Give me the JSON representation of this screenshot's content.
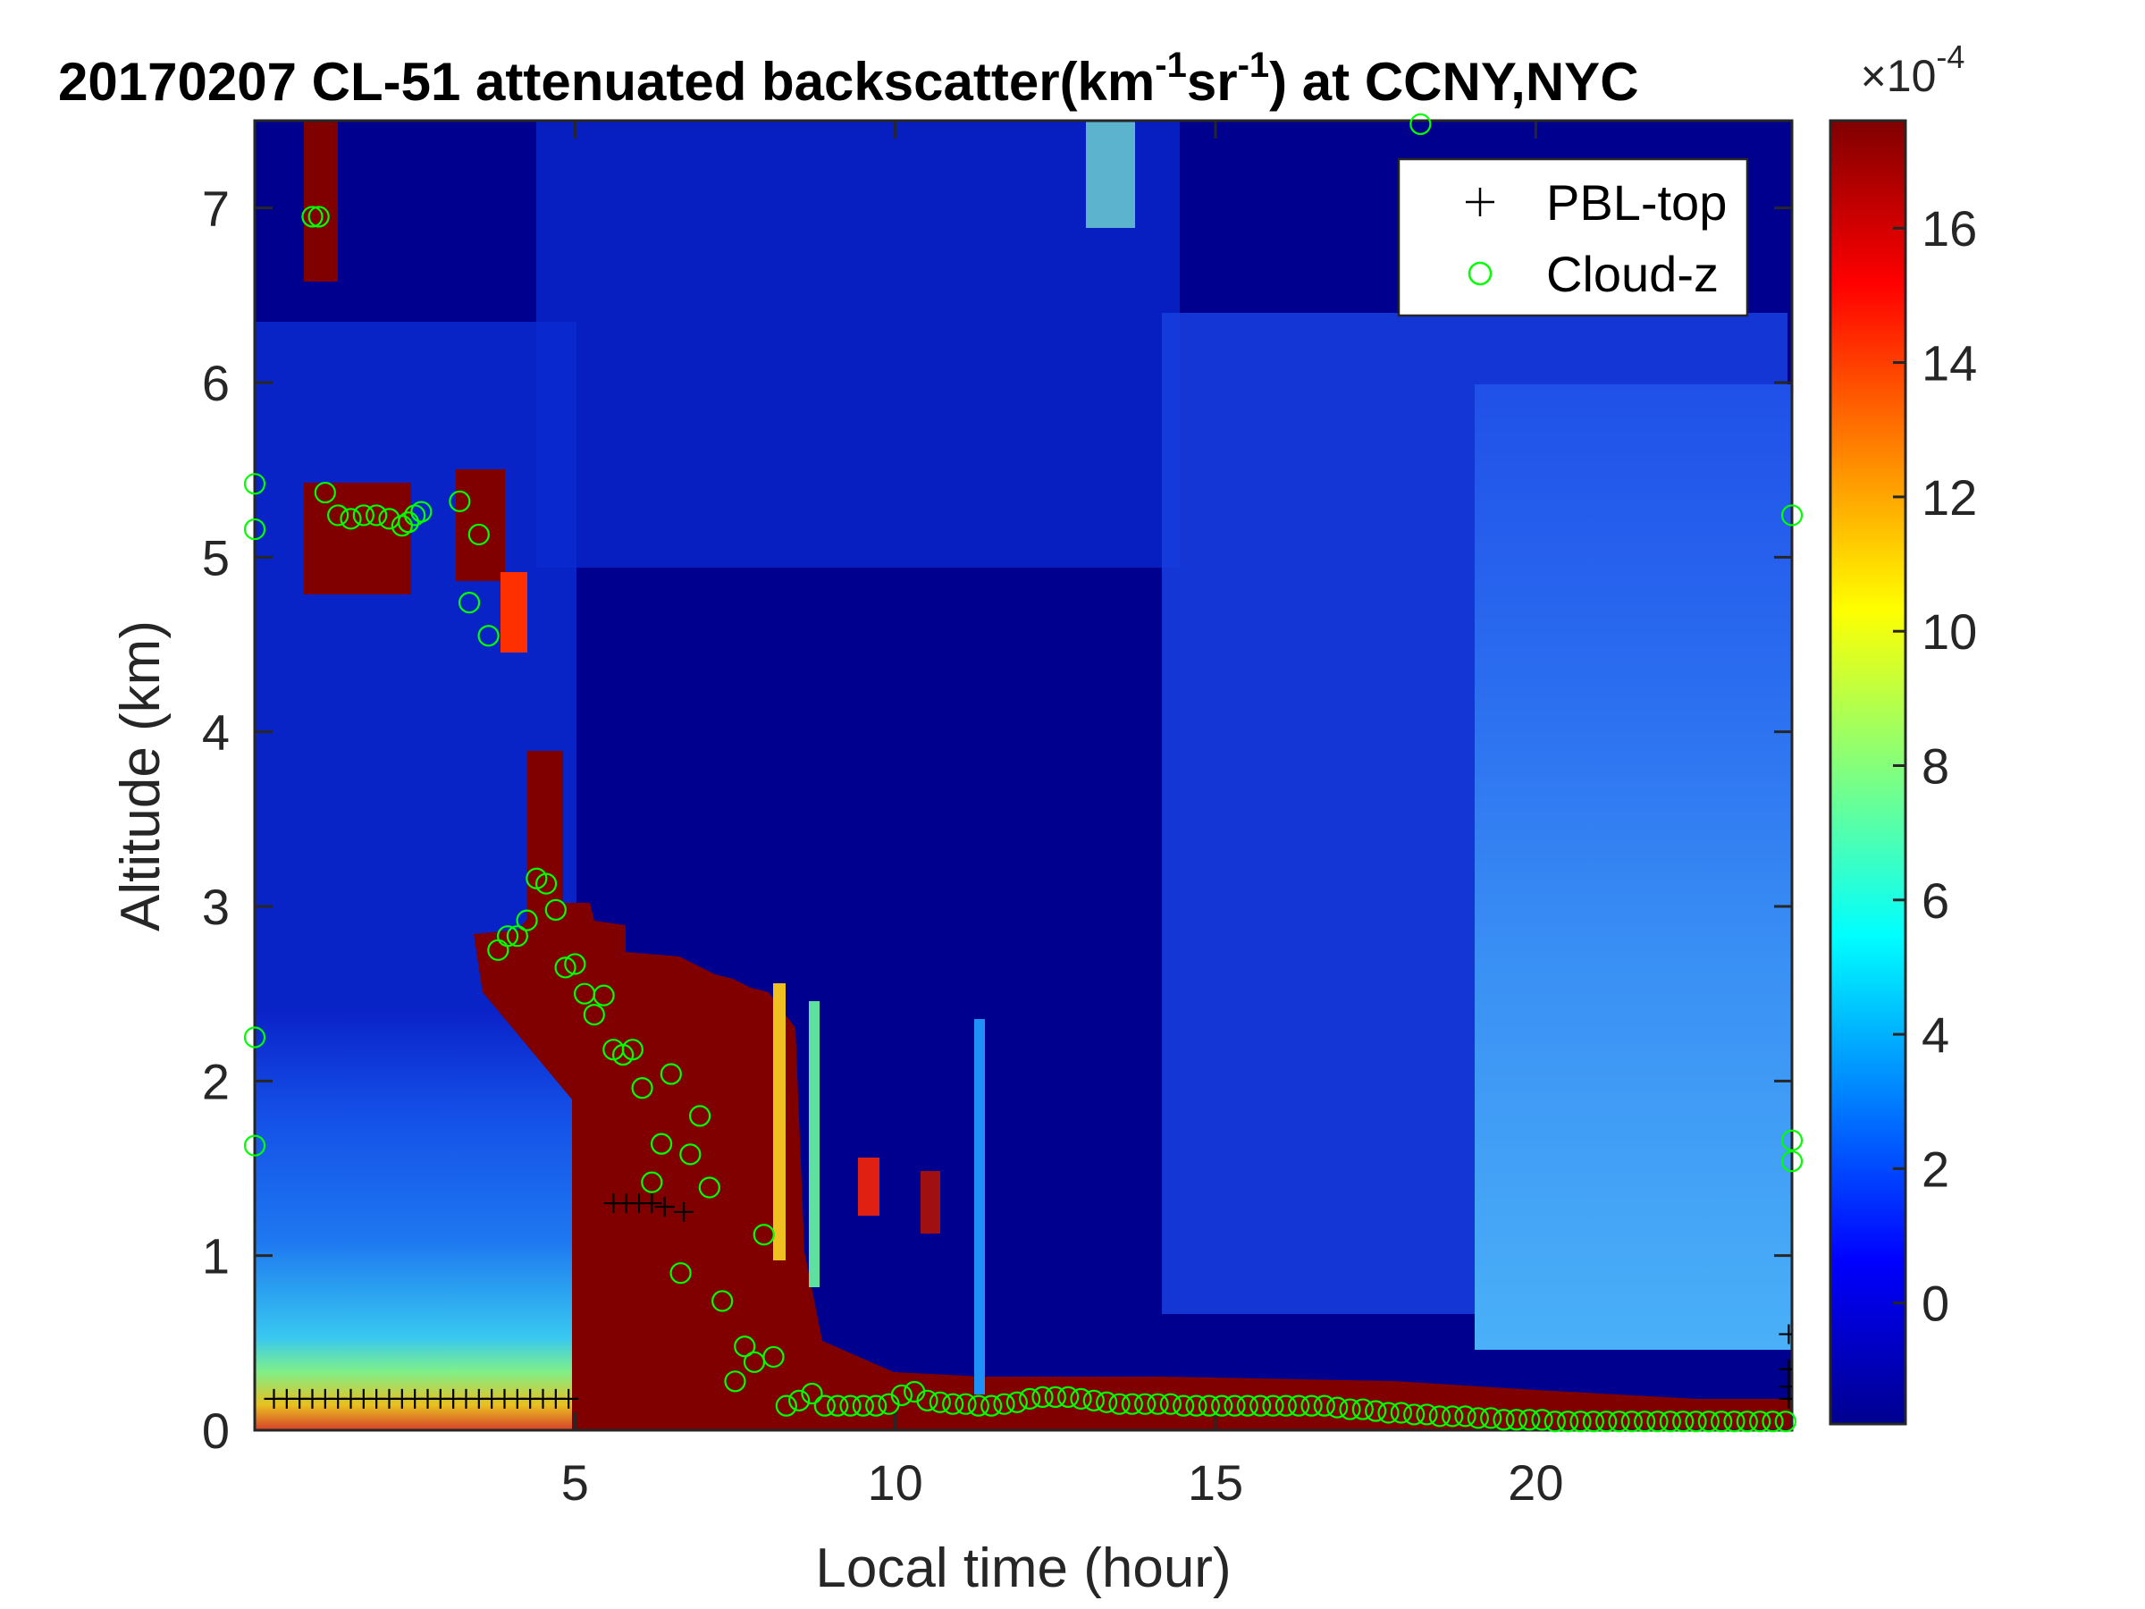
{
  "chart_data": {
    "type": "heatmap",
    "title": {
      "prefix": "20170207  CL-51 attenuated backscatter(km",
      "sup1": "-1",
      "mid": "sr",
      "sup2": "-1",
      "suffix": ") at CCNY,NYC"
    },
    "xlabel": "Local time (hour)",
    "ylabel": "Altitude (km)",
    "xlim": [
      0,
      24
    ],
    "ylim": [
      0,
      7.5
    ],
    "xticks": [
      5,
      10,
      15,
      20
    ],
    "yticks": [
      0,
      1,
      2,
      3,
      4,
      5,
      6,
      7
    ],
    "colorbar": {
      "colormap": "jet",
      "range": [
        -1.8,
        17.6
      ],
      "ticks": [
        0,
        2,
        4,
        6,
        8,
        10,
        12,
        14,
        16
      ],
      "exponent_base": "×10",
      "exponent": "-4"
    },
    "legend": {
      "placement": "top-right",
      "entries": [
        {
          "label": "PBL-top",
          "marker": "plus",
          "color": "#000000"
        },
        {
          "label": "Cloud-z",
          "marker": "circle",
          "color": "#00ff00"
        }
      ]
    },
    "series": [
      {
        "name": "PBL-top",
        "x": [
          0.3,
          0.5,
          0.7,
          0.9,
          1.1,
          1.3,
          1.5,
          1.7,
          1.9,
          2.1,
          2.3,
          2.5,
          2.7,
          2.9,
          3.1,
          3.3,
          3.5,
          3.7,
          3.9,
          4.1,
          4.3,
          4.5,
          4.7,
          4.9,
          5.6,
          5.8,
          6.0,
          6.2,
          6.4,
          6.7,
          23.95,
          23.95,
          23.95,
          23.95
        ],
        "y": [
          0.18,
          0.18,
          0.18,
          0.18,
          0.18,
          0.18,
          0.18,
          0.18,
          0.18,
          0.18,
          0.18,
          0.18,
          0.18,
          0.18,
          0.18,
          0.18,
          0.18,
          0.18,
          0.18,
          0.18,
          0.18,
          0.18,
          0.18,
          0.18,
          1.3,
          1.3,
          1.3,
          1.3,
          1.28,
          1.25,
          0.55,
          0.35,
          0.25,
          0.18
        ]
      },
      {
        "name": "Cloud-z",
        "x": [
          0.0,
          0.0,
          0.0,
          0.0,
          0.9,
          1.0,
          1.1,
          1.3,
          1.5,
          1.7,
          1.9,
          2.1,
          2.3,
          2.4,
          2.5,
          2.6,
          3.2,
          3.35,
          3.5,
          3.65,
          3.8,
          3.95,
          4.1,
          4.25,
          4.4,
          4.55,
          4.7,
          4.85,
          5.0,
          5.15,
          5.3,
          5.45,
          5.6,
          5.75,
          5.9,
          6.05,
          6.2,
          6.35,
          6.5,
          6.65,
          6.8,
          6.95,
          7.1,
          7.3,
          7.5,
          7.65,
          7.8,
          7.95,
          8.1,
          8.3,
          8.5,
          8.7,
          8.9,
          9.1,
          9.3,
          9.5,
          9.7,
          9.9,
          10.1,
          10.3,
          10.5,
          10.7,
          10.9,
          11.1,
          11.3,
          11.5,
          11.7,
          11.9,
          12.1,
          12.3,
          12.5,
          12.7,
          12.9,
          13.1,
          13.3,
          13.5,
          13.7,
          13.9,
          14.1,
          14.3,
          14.5,
          14.7,
          14.9,
          15.1,
          15.3,
          15.5,
          15.7,
          15.9,
          16.1,
          16.3,
          16.5,
          16.7,
          16.9,
          17.1,
          17.3,
          17.5,
          17.7,
          17.9,
          18.1,
          18.3,
          18.5,
          18.7,
          18.9,
          19.1,
          19.3,
          19.5,
          19.7,
          19.9,
          20.1,
          20.3,
          20.5,
          20.7,
          20.9,
          21.1,
          21.3,
          21.5,
          21.7,
          21.9,
          22.1,
          22.3,
          22.5,
          22.7,
          22.9,
          23.1,
          23.3,
          23.5,
          23.7,
          23.9,
          24.0,
          24.0,
          24.0,
          18.2
        ],
        "y": [
          5.42,
          5.16,
          2.25,
          1.63,
          6.95,
          6.95,
          5.37,
          5.24,
          5.22,
          5.24,
          5.24,
          5.22,
          5.18,
          5.2,
          5.24,
          5.26,
          5.32,
          4.74,
          5.13,
          4.55,
          2.75,
          2.83,
          2.83,
          2.92,
          3.16,
          3.13,
          2.98,
          2.65,
          2.67,
          2.5,
          2.38,
          2.49,
          2.18,
          2.15,
          2.18,
          1.96,
          1.42,
          1.64,
          2.04,
          0.9,
          1.58,
          1.8,
          1.39,
          0.74,
          0.28,
          0.48,
          0.39,
          1.12,
          0.42,
          0.14,
          0.17,
          0.21,
          0.14,
          0.14,
          0.14,
          0.14,
          0.14,
          0.15,
          0.2,
          0.22,
          0.17,
          0.16,
          0.15,
          0.15,
          0.14,
          0.14,
          0.15,
          0.16,
          0.18,
          0.19,
          0.19,
          0.19,
          0.18,
          0.17,
          0.16,
          0.15,
          0.15,
          0.15,
          0.15,
          0.15,
          0.14,
          0.14,
          0.14,
          0.14,
          0.14,
          0.14,
          0.14,
          0.14,
          0.14,
          0.14,
          0.14,
          0.14,
          0.13,
          0.12,
          0.12,
          0.11,
          0.1,
          0.1,
          0.09,
          0.09,
          0.08,
          0.08,
          0.08,
          0.07,
          0.07,
          0.06,
          0.06,
          0.06,
          0.06,
          0.05,
          0.05,
          0.05,
          0.05,
          0.05,
          0.05,
          0.05,
          0.05,
          0.05,
          0.05,
          0.05,
          0.05,
          0.05,
          0.05,
          0.05,
          0.05,
          0.05,
          0.05,
          0.05,
          5.24,
          1.66,
          1.54,
          7.48
        ]
      }
    ]
  }
}
